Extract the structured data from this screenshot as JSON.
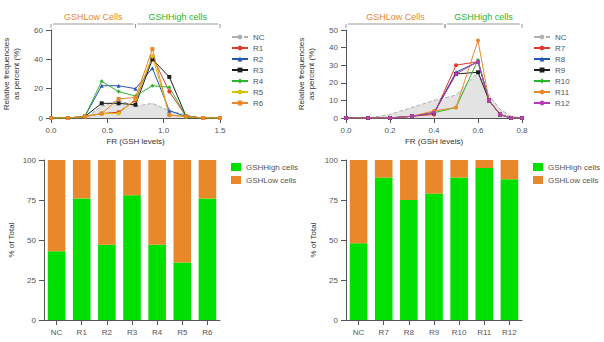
{
  "chart_data": [
    {
      "type": "line",
      "x": [
        0.0,
        0.15,
        0.3,
        0.45,
        0.6,
        0.75,
        0.9,
        1.05,
        1.2,
        1.35,
        1.5
      ],
      "series": [
        {
          "name": "NC",
          "type": "area",
          "color": "#b0b0b0",
          "line_style": "dashed",
          "marker": "none",
          "values": [
            0,
            0,
            0,
            8,
            12,
            8,
            10,
            5,
            2,
            0,
            0
          ]
        },
        {
          "name": "R1",
          "color": "#e0392a",
          "marker": "circle",
          "values": [
            0,
            0,
            1,
            3,
            4,
            12,
            42,
            18,
            1,
            0,
            0
          ]
        },
        {
          "name": "R2",
          "color": "#2356b4",
          "marker": "triangle",
          "values": [
            0,
            0,
            1,
            22,
            22,
            20,
            34,
            5,
            1,
            0,
            0
          ]
        },
        {
          "name": "R3",
          "color": "#1e1e1e",
          "marker": "square",
          "values": [
            0,
            0,
            1,
            10,
            10,
            9,
            40,
            28,
            1,
            0,
            0
          ]
        },
        {
          "name": "R4",
          "color": "#2ab52a",
          "marker": "diamond",
          "values": [
            0,
            0,
            1,
            25,
            18,
            15,
            22,
            21,
            1,
            0,
            0
          ]
        },
        {
          "name": "R5",
          "color": "#d4c400",
          "marker": "circle",
          "values": [
            0,
            0,
            1,
            3,
            3,
            13,
            42,
            2,
            1,
            0,
            0
          ]
        },
        {
          "name": "R6",
          "color": "#e8882a",
          "marker": "square",
          "values": [
            0,
            0,
            1,
            3,
            13,
            14,
            47,
            2,
            1,
            0,
            0
          ]
        }
      ],
      "xlabel": "FR (GSH levels)",
      "ylabel": "Relative frequencies\nas percent (%)",
      "xlim": [
        0.0,
        1.5
      ],
      "ylim": [
        0,
        60
      ],
      "xticks": [
        {
          "value": 0.0,
          "label": "0.0"
        },
        0.5,
        {
          "value": 1.0,
          "label": "1.0"
        },
        1.5
      ],
      "yticks": [
        0,
        20,
        40,
        60
      ],
      "grid": false,
      "legend": "right",
      "annotations": [
        {
          "text": "GSHLow Cells",
          "color": "#e8882a",
          "x": [
            0.0,
            0.75
          ]
        },
        {
          "text": "GSHHigh cells",
          "color": "#2ab52a",
          "x": [
            0.75,
            1.5
          ]
        }
      ]
    },
    {
      "type": "line",
      "x": [
        0.0,
        0.1,
        0.2,
        0.3,
        0.4,
        0.5,
        0.6,
        0.65,
        0.7,
        0.75,
        0.8
      ],
      "series": [
        {
          "name": "NC",
          "type": "area",
          "color": "#b0b0b0",
          "line_style": "dashed",
          "marker": "none",
          "values": [
            0,
            0,
            2,
            6,
            10,
            13,
            26,
            13,
            5,
            1,
            0
          ]
        },
        {
          "name": "R7",
          "color": "#e0392a",
          "marker": "circle",
          "values": [
            0,
            0,
            0,
            1,
            2,
            30,
            32,
            10,
            2,
            0,
            0
          ]
        },
        {
          "name": "R8",
          "color": "#2356b4",
          "marker": "triangle",
          "values": [
            0,
            0,
            0,
            1,
            3,
            26,
            32,
            10,
            2,
            0,
            0
          ]
        },
        {
          "name": "R9",
          "color": "#1e1e1e",
          "marker": "square",
          "values": [
            0,
            0,
            0,
            1,
            3,
            25,
            26,
            10,
            2,
            0,
            0
          ]
        },
        {
          "name": "R10",
          "color": "#2ab52a",
          "marker": "diamond",
          "values": [
            0,
            0,
            0,
            1,
            3,
            6,
            33,
            10,
            2,
            0,
            0
          ]
        },
        {
          "name": "R11",
          "color": "#e8882a",
          "marker": "circle",
          "values": [
            0,
            0,
            0,
            1,
            4,
            6,
            44,
            10,
            2,
            0,
            0
          ]
        },
        {
          "name": "R12",
          "color": "#b83ab8",
          "marker": "circle",
          "values": [
            0,
            0,
            0,
            1,
            3,
            25,
            32,
            10,
            2,
            0,
            0
          ]
        }
      ],
      "xlabel": "FR (GSH levels)",
      "ylabel": "Relative frequencies\nas percent (%)",
      "xlim": [
        0.0,
        0.8
      ],
      "ylim": [
        0,
        50
      ],
      "xticks": [
        {
          "value": 0.0,
          "label": "0.0"
        },
        0.2,
        0.4,
        0.6,
        0.8
      ],
      "yticks": [
        0,
        10,
        20,
        30,
        40,
        50
      ],
      "grid": false,
      "legend": "right",
      "annotations": [
        {
          "text": "GSHLow Cells",
          "color": "#e8882a",
          "x": [
            0.0,
            0.45
          ]
        },
        {
          "text": "GSHHigh cells",
          "color": "#2ab52a",
          "x": [
            0.45,
            0.8
          ]
        }
      ]
    },
    {
      "type": "bar",
      "stacked": true,
      "categories": [
        "NC",
        "R1",
        "R2",
        "R3",
        "R4",
        "R5",
        "R6"
      ],
      "series": [
        {
          "name": "GSHHigh cells",
          "color": "#00e000",
          "values": [
            43,
            76,
            47,
            78,
            47,
            36,
            76
          ]
        },
        {
          "name": "GSHLow cells",
          "color": "#e8882a",
          "values": [
            57,
            24,
            53,
            22,
            53,
            64,
            24
          ]
        }
      ],
      "ylabel": "% of Total",
      "ylim": [
        0,
        100
      ],
      "yticks": [
        0,
        25,
        50,
        75,
        100
      ],
      "grid": false,
      "legend": "right"
    },
    {
      "type": "bar",
      "stacked": true,
      "categories": [
        "NC",
        "R7",
        "R8",
        "R9",
        "R10",
        "R11",
        "R12"
      ],
      "series": [
        {
          "name": "GSHHigh cells",
          "color": "#00e000",
          "values": [
            48,
            89,
            75,
            79,
            89,
            95,
            88
          ]
        },
        {
          "name": "GSHLow cells",
          "color": "#e8882a",
          "values": [
            52,
            11,
            25,
            21,
            11,
            5,
            12
          ]
        }
      ],
      "ylabel": "% of Total",
      "ylim": [
        0,
        100
      ],
      "yticks": [
        0,
        25,
        50,
        75,
        100
      ],
      "grid": false,
      "legend": "right"
    }
  ]
}
